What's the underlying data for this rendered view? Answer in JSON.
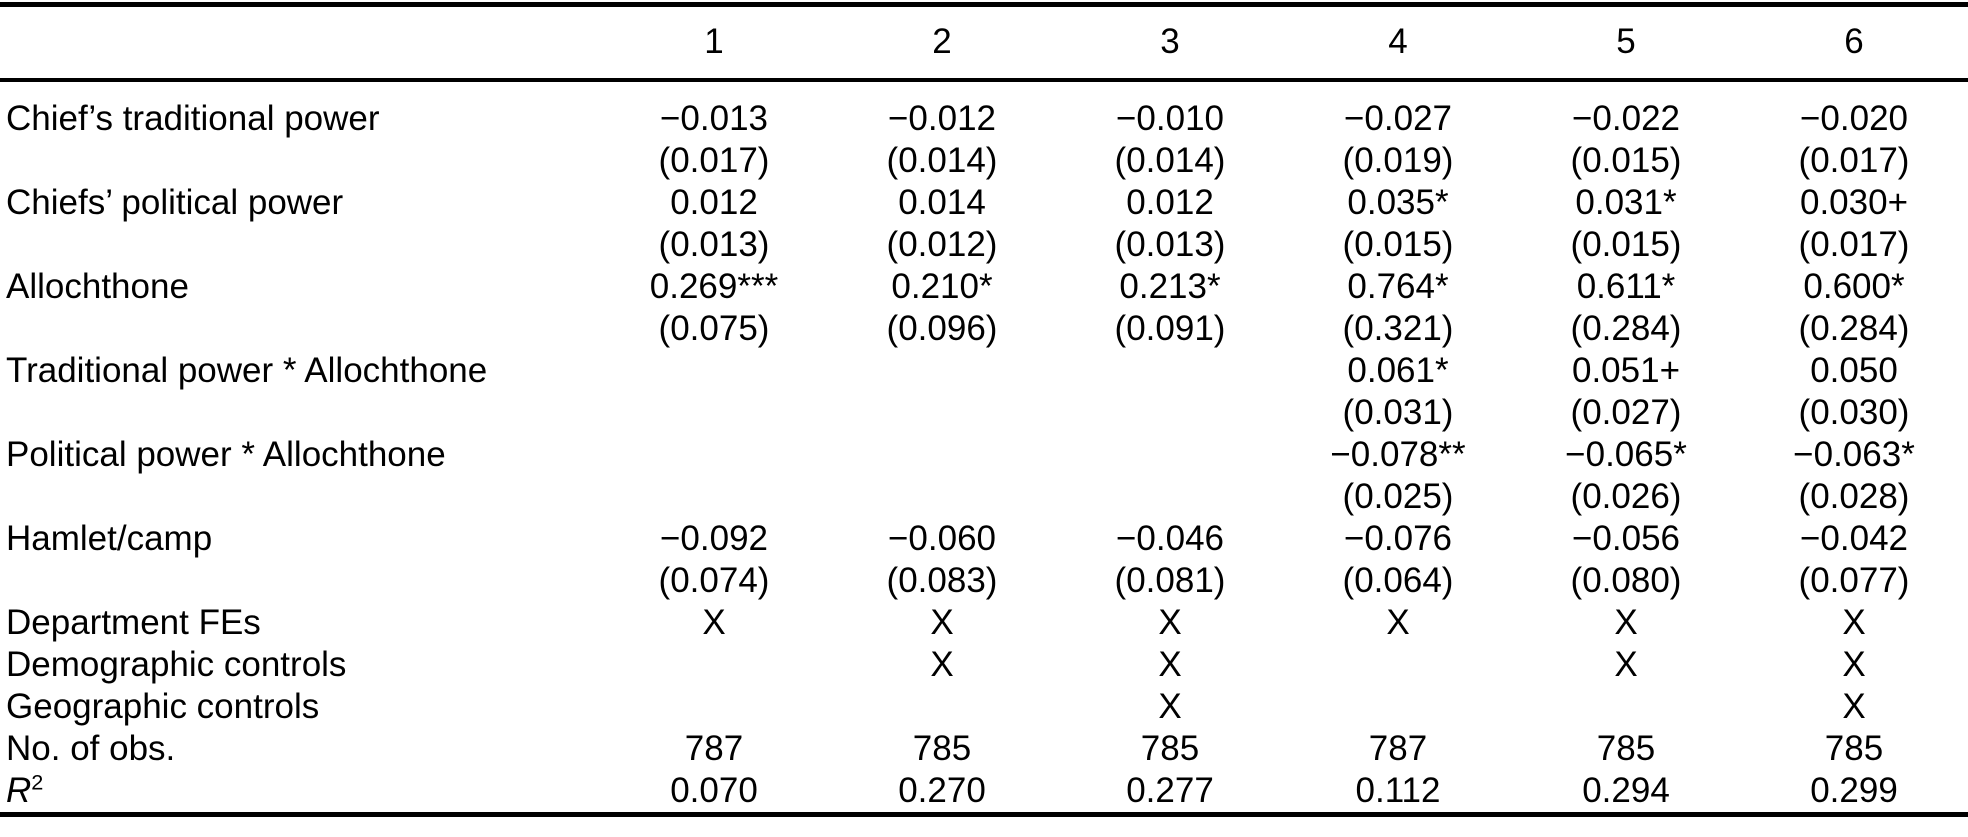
{
  "colors": {
    "text": "#000000",
    "background": "#ffffff",
    "rule": "#000000"
  },
  "table": {
    "column_headers": [
      "1",
      "2",
      "3",
      "4",
      "5",
      "6"
    ],
    "coef_rows": [
      {
        "label": "Chief’s traditional power",
        "coefs": [
          "−0.013",
          "−0.012",
          "−0.010",
          "−0.027",
          "−0.022",
          "−0.020"
        ],
        "ses": [
          "(0.017)",
          "(0.014)",
          "(0.014)",
          "(0.019)",
          "(0.015)",
          "(0.017)"
        ]
      },
      {
        "label": "Chiefs’ political power",
        "coefs": [
          "0.012",
          "0.014",
          "0.012",
          "0.035*",
          "0.031*",
          "0.030+"
        ],
        "ses": [
          "(0.013)",
          "(0.012)",
          "(0.013)",
          "(0.015)",
          "(0.015)",
          "(0.017)"
        ]
      },
      {
        "label": "Allochthone",
        "coefs": [
          "0.269***",
          "0.210*",
          "0.213*",
          "0.764*",
          "0.611*",
          "0.600*"
        ],
        "ses": [
          "(0.075)",
          "(0.096)",
          "(0.091)",
          "(0.321)",
          "(0.284)",
          "(0.284)"
        ]
      },
      {
        "label": "Traditional power * Allochthone",
        "coefs": [
          "",
          "",
          "",
          "0.061*",
          "0.051+",
          "0.050"
        ],
        "ses": [
          "",
          "",
          "",
          "(0.031)",
          "(0.027)",
          "(0.030)"
        ]
      },
      {
        "label": "Political power * Allochthone",
        "coefs": [
          "",
          "",
          "",
          "−0.078**",
          "−0.065*",
          "−0.063*"
        ],
        "ses": [
          "",
          "",
          "",
          "(0.025)",
          "(0.026)",
          "(0.028)"
        ]
      },
      {
        "label": "Hamlet/camp",
        "coefs": [
          "−0.092",
          "−0.060",
          "−0.046",
          "−0.076",
          "−0.056",
          "−0.042"
        ],
        "ses": [
          "(0.074)",
          "(0.083)",
          "(0.081)",
          "(0.064)",
          "(0.080)",
          "(0.077)"
        ]
      }
    ],
    "indicator_rows": [
      {
        "label": "Department FEs",
        "values": [
          "X",
          "X",
          "X",
          "X",
          "X",
          "X"
        ]
      },
      {
        "label": "Demographic controls",
        "values": [
          "",
          "X",
          "X",
          "",
          "X",
          "X"
        ]
      },
      {
        "label": "Geographic controls",
        "values": [
          "",
          "",
          "X",
          "",
          "",
          "X"
        ]
      }
    ],
    "stat_rows": [
      {
        "label": "No. of obs.",
        "values": [
          "787",
          "785",
          "785",
          "787",
          "785",
          "785"
        ]
      },
      {
        "label_main": "R",
        "label_sup": "2",
        "values": [
          "0.070",
          "0.270",
          "0.277",
          "0.112",
          "0.294",
          "0.299"
        ]
      }
    ]
  }
}
